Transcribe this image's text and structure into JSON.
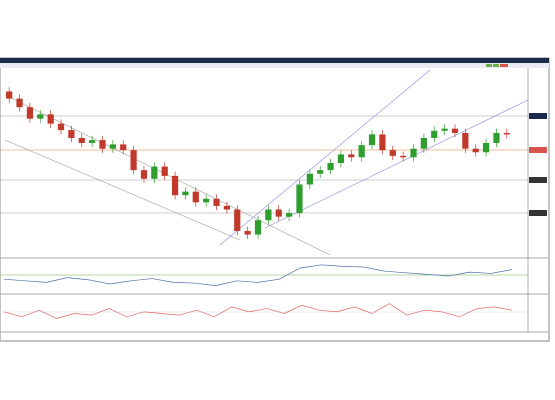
{
  "chart_data": [
    {
      "type": "candlestick",
      "open": [
        1.15,
        1.14,
        1.128,
        1.112,
        1.118,
        1.105,
        1.096,
        1.085,
        1.078,
        1.082,
        1.07,
        1.076,
        1.068,
        1.04,
        1.028,
        1.045,
        1.032,
        1.005,
        1.01,
        0.995,
        1.0,
        0.99,
        0.985,
        0.955,
        0.95,
        0.97,
        0.985,
        0.975,
        0.98,
        1.02,
        1.035,
        1.04,
        1.05,
        1.062,
        1.058,
        1.075,
        1.09,
        1.068,
        1.06,
        1.058,
        1.07,
        1.085,
        1.095,
        1.098,
        1.092,
        1.07,
        1.065,
        1.078,
        1.092
      ],
      "high": [
        1.156,
        1.146,
        1.134,
        1.124,
        1.124,
        1.111,
        1.102,
        1.091,
        1.088,
        1.088,
        1.082,
        1.082,
        1.074,
        1.046,
        1.051,
        1.051,
        1.038,
        1.016,
        1.016,
        1.006,
        1.006,
        0.996,
        0.991,
        0.961,
        0.976,
        0.991,
        0.991,
        0.986,
        1.026,
        1.041,
        1.046,
        1.056,
        1.068,
        1.068,
        1.081,
        1.096,
        1.096,
        1.074,
        1.066,
        1.076,
        1.091,
        1.101,
        1.104,
        1.104,
        1.098,
        1.076,
        1.084,
        1.098,
        1.098
      ],
      "low": [
        1.134,
        1.122,
        1.106,
        1.106,
        1.099,
        1.09,
        1.079,
        1.072,
        1.072,
        1.064,
        1.064,
        1.062,
        1.034,
        1.022,
        1.022,
        1.026,
        0.999,
        0.999,
        0.989,
        0.989,
        0.984,
        0.979,
        0.949,
        0.944,
        0.944,
        0.964,
        0.969,
        0.969,
        0.974,
        1.014,
        1.029,
        1.034,
        1.044,
        1.052,
        1.052,
        1.069,
        1.062,
        1.054,
        1.052,
        1.052,
        1.064,
        1.079,
        1.089,
        1.086,
        1.064,
        1.059,
        1.059,
        1.072,
        1.084
      ],
      "close": [
        1.14,
        1.128,
        1.112,
        1.118,
        1.105,
        1.096,
        1.085,
        1.078,
        1.082,
        1.07,
        1.076,
        1.068,
        1.04,
        1.028,
        1.045,
        1.032,
        1.005,
        1.01,
        0.995,
        1.0,
        0.99,
        0.985,
        0.955,
        0.95,
        0.97,
        0.985,
        0.975,
        0.98,
        1.02,
        1.035,
        1.04,
        1.05,
        1.062,
        1.058,
        1.075,
        1.09,
        1.068,
        1.06,
        1.058,
        1.07,
        1.085,
        1.095,
        1.098,
        1.092,
        1.07,
        1.065,
        1.078,
        1.092,
        1.09
      ],
      "up_color": "#2e9e2e",
      "down_color": "#c0392b",
      "ylim": [
        0.92,
        1.18
      ]
    },
    {
      "type": "line",
      "color": "#4a6fa5",
      "values": [
        40,
        35,
        30,
        45,
        38,
        25,
        35,
        42,
        30,
        28,
        20,
        35,
        30,
        40,
        75,
        85,
        80,
        78,
        65,
        60,
        55,
        50,
        62,
        58,
        70
      ],
      "ylim": [
        0,
        100
      ]
    },
    {
      "type": "line",
      "color": "#e06666",
      "values": [
        55,
        40,
        60,
        35,
        50,
        45,
        65,
        40,
        55,
        50,
        45,
        60,
        40,
        70,
        55,
        65,
        50,
        75,
        60,
        55,
        70,
        50,
        80,
        45,
        60,
        55,
        40,
        65,
        70,
        60
      ],
      "ylim": [
        0,
        100
      ]
    }
  ]
}
